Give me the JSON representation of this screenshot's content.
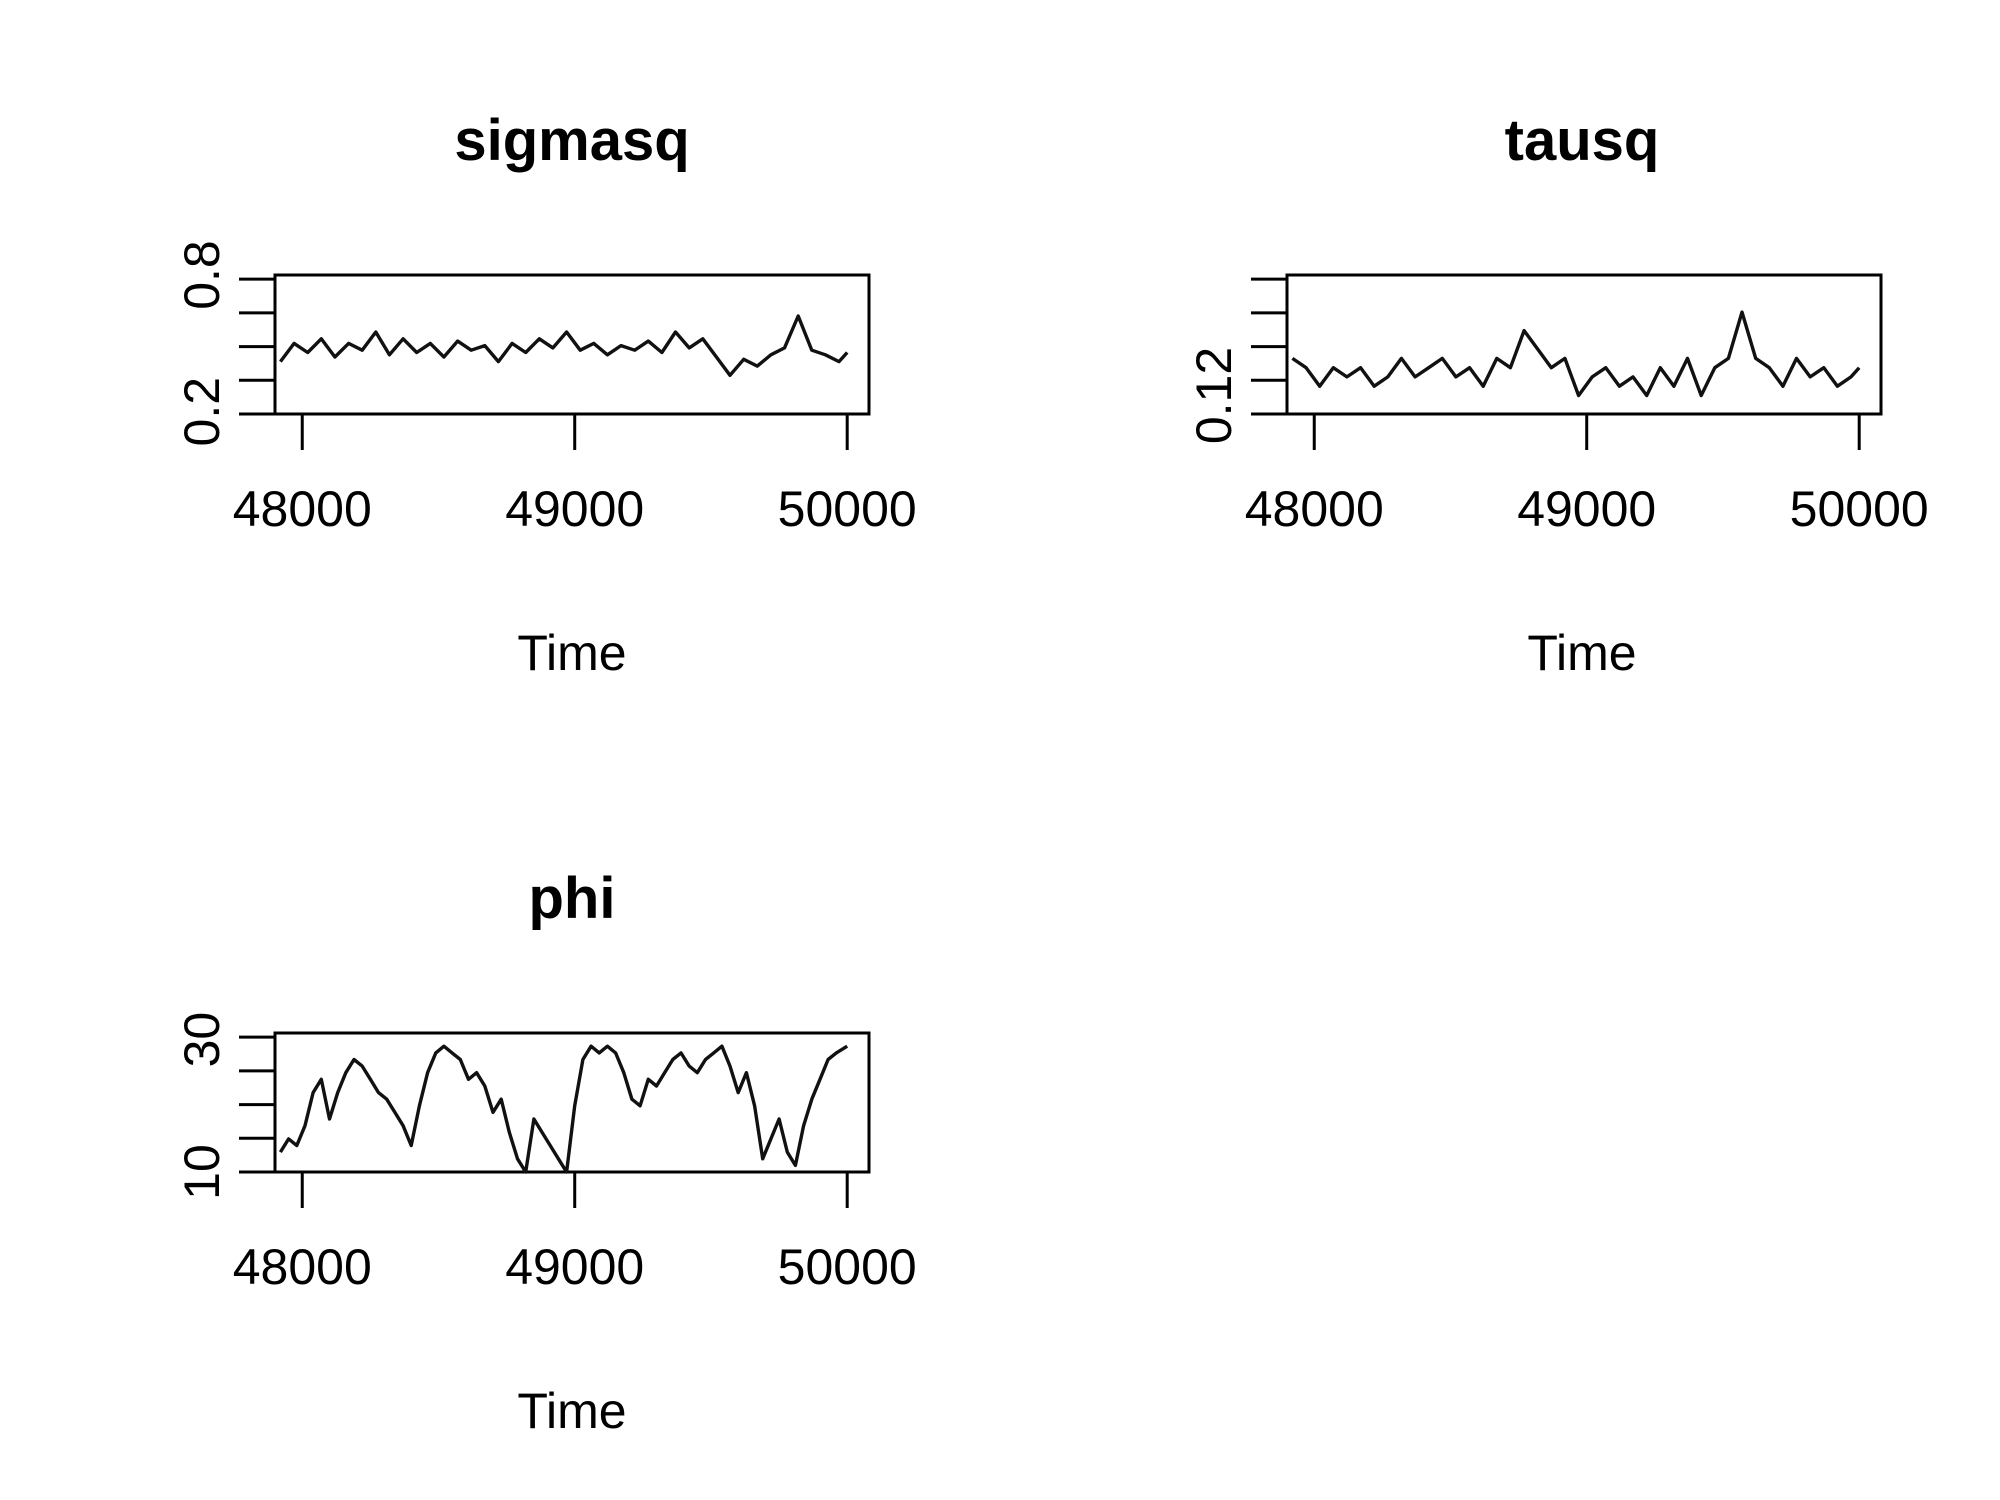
{
  "chart_data": [
    {
      "type": "line",
      "title": "sigmasq",
      "xlabel": "Time",
      "ylabel": "",
      "x_ticks": [
        48000,
        49000,
        50000
      ],
      "y_ticks": [
        0.2,
        0.8
      ],
      "y_tick_labels": [
        "0.2",
        "0.8"
      ],
      "xlim": [
        47900,
        50080
      ],
      "ylim": [
        0.19,
        0.8
      ],
      "series": [
        {
          "x": [
            47920,
            47970,
            48020,
            48070,
            48120,
            48170,
            48220,
            48270,
            48320,
            48370,
            48420,
            48470,
            48520,
            48570,
            48620,
            48670,
            48720,
            48770,
            48820,
            48870,
            48920,
            48970,
            49020,
            49070,
            49120,
            49170,
            49220,
            49270,
            49320,
            49370,
            49420,
            49470,
            49520,
            49570,
            49620,
            49670,
            49720,
            49770,
            49820,
            49870,
            49920,
            49970,
            50000
          ],
          "values": [
            0.42,
            0.5,
            0.46,
            0.52,
            0.44,
            0.5,
            0.47,
            0.55,
            0.45,
            0.52,
            0.46,
            0.5,
            0.44,
            0.51,
            0.47,
            0.49,
            0.42,
            0.5,
            0.46,
            0.52,
            0.48,
            0.55,
            0.47,
            0.5,
            0.45,
            0.49,
            0.47,
            0.51,
            0.46,
            0.55,
            0.48,
            0.52,
            0.44,
            0.36,
            0.43,
            0.4,
            0.45,
            0.48,
            0.62,
            0.47,
            0.45,
            0.42,
            0.46
          ]
        }
      ]
    },
    {
      "type": "line",
      "title": "tausq",
      "xlabel": "Time",
      "ylabel": "",
      "x_ticks": [
        48000,
        49000,
        50000
      ],
      "y_ticks": [
        0.12
      ],
      "y_tick_labels": [
        "0.12"
      ],
      "xlim": [
        47900,
        50080
      ],
      "ylim": [
        0.1,
        0.25
      ],
      "series": [
        {
          "x": [
            47920,
            47970,
            48020,
            48070,
            48120,
            48170,
            48220,
            48270,
            48320,
            48370,
            48420,
            48470,
            48520,
            48570,
            48620,
            48670,
            48720,
            48770,
            48820,
            48870,
            48920,
            48970,
            49020,
            49070,
            49120,
            49170,
            49220,
            49270,
            49320,
            49370,
            49420,
            49470,
            49520,
            49570,
            49620,
            49670,
            49720,
            49770,
            49820,
            49870,
            49920,
            49970,
            50000
          ],
          "values": [
            0.16,
            0.15,
            0.13,
            0.15,
            0.14,
            0.15,
            0.13,
            0.14,
            0.16,
            0.14,
            0.15,
            0.16,
            0.14,
            0.15,
            0.13,
            0.16,
            0.15,
            0.19,
            0.17,
            0.15,
            0.16,
            0.12,
            0.14,
            0.15,
            0.13,
            0.14,
            0.12,
            0.15,
            0.13,
            0.16,
            0.12,
            0.15,
            0.16,
            0.21,
            0.16,
            0.15,
            0.13,
            0.16,
            0.14,
            0.15,
            0.13,
            0.14,
            0.15
          ]
        }
      ]
    },
    {
      "type": "line",
      "title": "phi",
      "xlabel": "Time",
      "ylabel": "",
      "x_ticks": [
        48000,
        49000,
        50000
      ],
      "y_ticks": [
        10,
        30
      ],
      "y_tick_labels": [
        "10",
        "30"
      ],
      "xlim": [
        47900,
        50080
      ],
      "ylim": [
        10,
        31
      ],
      "series": [
        {
          "x": [
            47920,
            47950,
            47980,
            48010,
            48040,
            48070,
            48100,
            48130,
            48160,
            48190,
            48220,
            48250,
            48280,
            48310,
            48340,
            48370,
            48400,
            48430,
            48460,
            48490,
            48520,
            48550,
            48580,
            48610,
            48640,
            48670,
            48700,
            48730,
            48760,
            48790,
            48820,
            48850,
            48880,
            48910,
            48940,
            48970,
            49000,
            49030,
            49060,
            49090,
            49120,
            49150,
            49180,
            49210,
            49240,
            49270,
            49300,
            49330,
            49360,
            49390,
            49420,
            49450,
            49480,
            49510,
            49540,
            49570,
            49600,
            49630,
            49660,
            49690,
            49720,
            49750,
            49780,
            49810,
            49840,
            49870,
            49900,
            49930,
            49960,
            50000
          ],
          "values": [
            13,
            15,
            14,
            17,
            22,
            24,
            18,
            22,
            25,
            27,
            26,
            24,
            22,
            21,
            19,
            17,
            14,
            20,
            25,
            28,
            29,
            28,
            27,
            24,
            25,
            23,
            19,
            21,
            16,
            12,
            10,
            18,
            16,
            14,
            12,
            10,
            20,
            27,
            29,
            28,
            29,
            28,
            25,
            21,
            20,
            24,
            23,
            25,
            27,
            28,
            26,
            25,
            27,
            28,
            29,
            26,
            22,
            25,
            20,
            12,
            15,
            18,
            13,
            11,
            17,
            21,
            24,
            27,
            28,
            29
          ]
        }
      ]
    }
  ]
}
